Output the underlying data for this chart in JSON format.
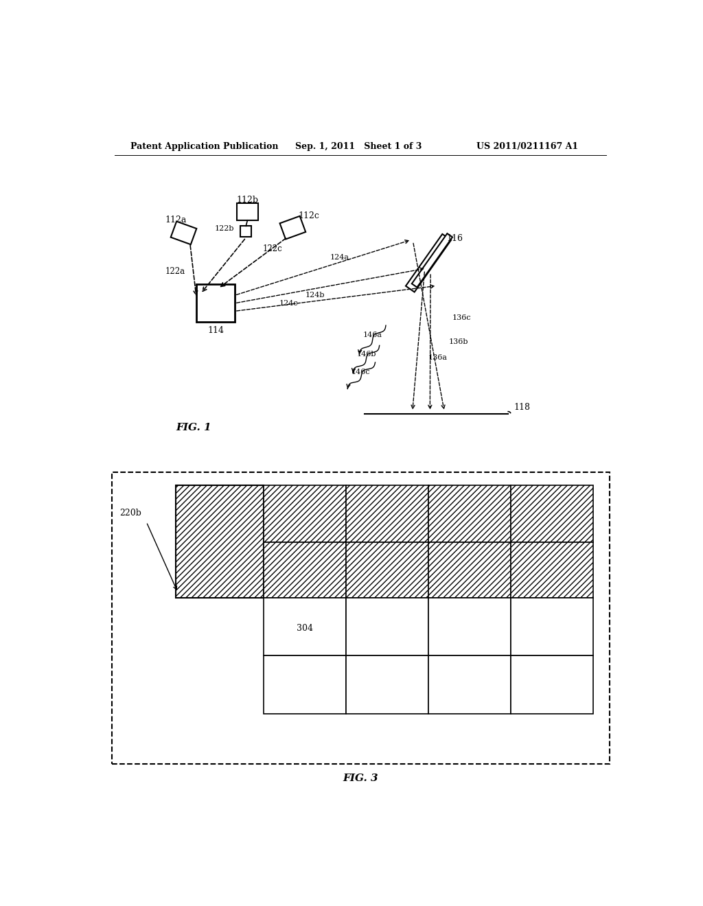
{
  "bg_color": "#ffffff",
  "header_left": "Patent Application Publication",
  "header_mid": "Sep. 1, 2011   Sheet 1 of 3",
  "header_right": "US 2011/0211167 A1",
  "fig1_label": "FIG. 1",
  "fig3_label": "FIG. 3",
  "text_color": "#000000",
  "line_color": "#000000"
}
